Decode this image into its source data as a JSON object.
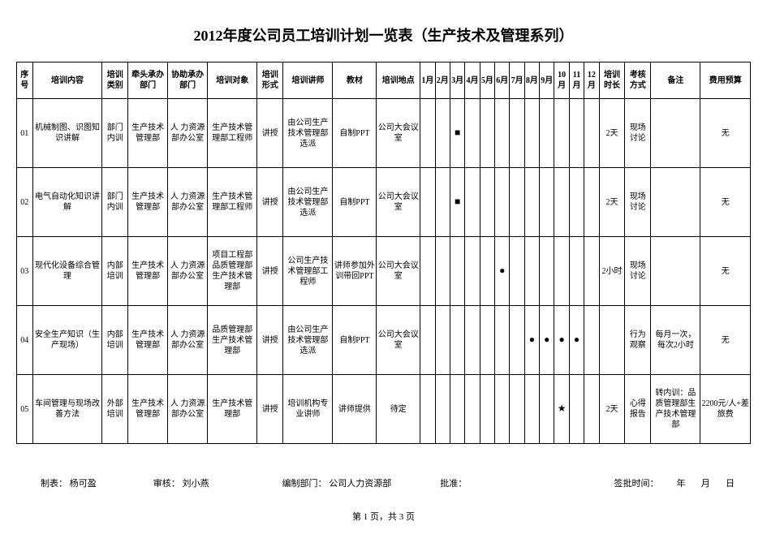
{
  "title": "2012年度公司员工培训计划一览表（生产技术及管理系列）",
  "headers": {
    "seq": "序号",
    "content": "培训内容",
    "type": "培训类别",
    "lead": "牵头承办部门",
    "assist": "协助承办部门",
    "target": "培训对象",
    "form": "培训形式",
    "lecturer": "培训讲师",
    "material": "教材",
    "location": "培训地点",
    "m1": "1月",
    "m2": "2月",
    "m3": "3月",
    "m4": "4月",
    "m5": "5月",
    "m6": "6月",
    "m7": "7月",
    "m8": "8月",
    "m9": "9月",
    "m10": "10月",
    "m11": "11月",
    "m12": "12月",
    "duration": "培训时长",
    "assess": "考核方式",
    "remark": "备注",
    "budget": "费用预算"
  },
  "rows": [
    {
      "seq": "01",
      "content": "机械制图、识图知识讲解",
      "type": "部门内训",
      "lead": "生产技术管理部",
      "assist": "人 力资源部办公室",
      "target": "生产技术管理部工程师",
      "form": "讲授",
      "lecturer": "由公司生产技术管理部选派",
      "material": "自制PPT",
      "location": "公司大会议室",
      "months": [
        "",
        "",
        "■",
        "",
        "",
        "",
        "",
        "",
        "",
        "",
        "",
        ""
      ],
      "duration": "2天",
      "assess": "现场讨论",
      "remark": "",
      "budget": "无"
    },
    {
      "seq": "02",
      "content": "电气自动化知识讲解",
      "type": "部门内训",
      "lead": "生产技术管理部",
      "assist": "人 力资源部办公室",
      "target": "生产技术管理部工程师",
      "form": "讲授",
      "lecturer": "由公司生产技术管理部选派",
      "material": "自制PPT",
      "location": "公司大会议室",
      "months": [
        "",
        "",
        "■",
        "",
        "",
        "",
        "",
        "",
        "",
        "",
        "",
        ""
      ],
      "duration": "2天",
      "assess": "现场讨论",
      "remark": "",
      "budget": "无"
    },
    {
      "seq": "03",
      "content": "现代化设备综合管理",
      "type": "内部培训",
      "lead": "生产技术管理部",
      "assist": "人 力资源部办公室",
      "target": "项目工程部品质管理部生产技术管理部",
      "form": "讲授",
      "lecturer": "公司生产技术管理部工程师",
      "material": "讲师参加外训带回PPT",
      "location": "公司大会议室",
      "months": [
        "",
        "",
        "",
        "",
        "",
        "●",
        "",
        "",
        "",
        "",
        "",
        ""
      ],
      "duration": "2小时",
      "assess": "现场讨论",
      "remark": "",
      "budget": "无"
    },
    {
      "seq": "04",
      "content": "安全生产知识（生产现场）",
      "type": "内部培训",
      "lead": "生产技术管理部",
      "assist": "人 力资源部办公室",
      "target": "品质管理部生产技术管理部",
      "form": "讲授",
      "lecturer": "由公司生产技术管理部选派",
      "material": "自制PPT",
      "location": "公司大会议室",
      "months": [
        "",
        "",
        "",
        "",
        "",
        "",
        "",
        "●",
        "●",
        "●",
        "●",
        ""
      ],
      "duration": "",
      "assess": "行为观察",
      "remark": "每月一次，每次2小时",
      "budget": "无"
    },
    {
      "seq": "05",
      "content": "车间管理与现场改善方法",
      "type": "外部培训",
      "lead": "生产技术管理部",
      "assist": "人 力资源部办公室",
      "target": "生产技术管理部",
      "form": "讲授",
      "lecturer": "培训机构专业讲师",
      "material": "讲师提供",
      "location": "待定",
      "months": [
        "",
        "",
        "",
        "",
        "",
        "",
        "",
        "",
        "",
        "★",
        "",
        ""
      ],
      "duration": "2天",
      "assess": "心得报告",
      "remark": "转内训：品质管理部生产技术管理部",
      "budget": "2200元/人+差旅费"
    }
  ],
  "footer": {
    "maker_label": "制表：",
    "maker": "杨可盈",
    "reviewer_label": "审核：",
    "reviewer": "刘小燕",
    "dept_label": "编制部门：",
    "dept": "公司人力资源部",
    "approve_label": "批准：",
    "approve": "",
    "date_label": "签批时间：",
    "year": "年",
    "month": "月",
    "day": "日"
  },
  "page": "第 1 页，共 3 页"
}
